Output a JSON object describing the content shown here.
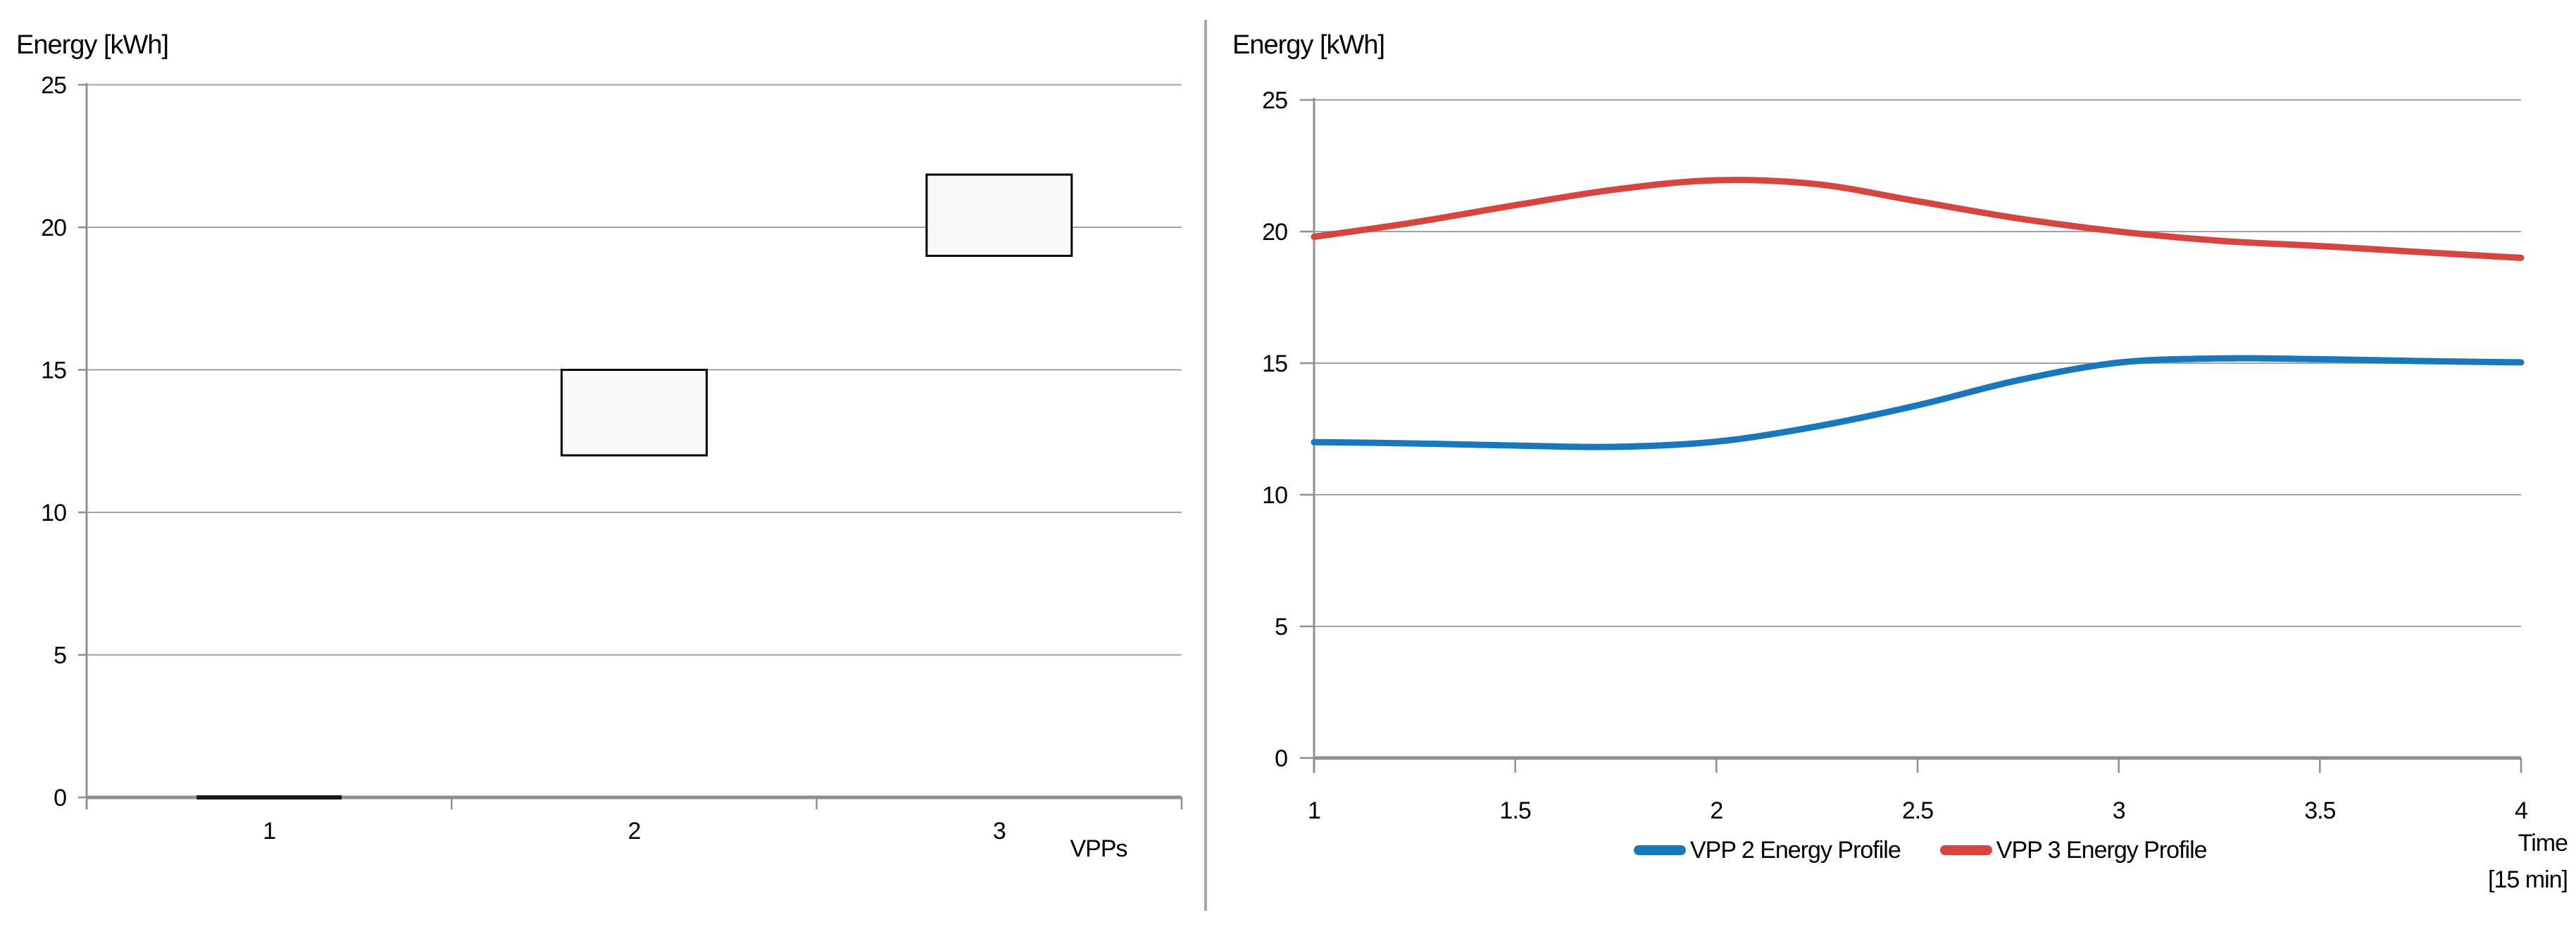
{
  "divider": {
    "color": "#a8a8a8"
  },
  "colors": {
    "gridline": "#a3a3a3",
    "axis": "#8f8f8f",
    "box_fill": "#f8f8f8",
    "box_border": "#000000",
    "collapsed_bar": "#1a1a1a",
    "text": "#000000"
  },
  "chart_data": [
    {
      "type": "bar",
      "subtype": "floating-range-box",
      "title": "Energy [kWh]",
      "xlabel": "VPPs",
      "ylabel": "Energy [kWh]",
      "categories": [
        "1",
        "2",
        "3"
      ],
      "ranges": [
        [
          0,
          0
        ],
        [
          12,
          15
        ],
        [
          19,
          21.85
        ]
      ],
      "ylim": [
        0,
        25
      ],
      "y_ticks": [
        0,
        5,
        10,
        15,
        20,
        25
      ],
      "grid": true,
      "legend_position": "none"
    },
    {
      "type": "line",
      "title": "Energy [kWh]",
      "xlabel_line1": "Time",
      "xlabel_line2": "[15 min]",
      "ylabel": "Energy [kWh]",
      "xlim": [
        1,
        4
      ],
      "ylim": [
        0,
        25
      ],
      "x_ticks": [
        1,
        1.5,
        2,
        2.5,
        3,
        3.5,
        4
      ],
      "y_ticks": [
        0,
        5,
        10,
        15,
        20,
        25
      ],
      "grid": true,
      "legend_position": "bottom",
      "line_style": "smooth",
      "series": [
        {
          "name": "VPP 2 Energy Profile",
          "color": "#1878be",
          "points": [
            [
              1,
              12.0
            ],
            [
              1.25,
              11.95
            ],
            [
              1.5,
              11.87
            ],
            [
              1.75,
              11.82
            ],
            [
              2,
              12.02
            ],
            [
              2.25,
              12.6
            ],
            [
              2.5,
              13.4
            ],
            [
              2.75,
              14.35
            ],
            [
              3,
              15.02
            ],
            [
              3.25,
              15.18
            ],
            [
              3.5,
              15.15
            ],
            [
              3.75,
              15.08
            ],
            [
              4,
              15.03
            ]
          ]
        },
        {
          "name": "VPP 3 Energy Profile",
          "color": "#d74541",
          "points": [
            [
              1,
              19.8
            ],
            [
              1.25,
              20.35
            ],
            [
              1.5,
              21.0
            ],
            [
              1.75,
              21.6
            ],
            [
              2,
              21.95
            ],
            [
              2.25,
              21.8
            ],
            [
              2.5,
              21.15
            ],
            [
              2.75,
              20.5
            ],
            [
              3,
              20.0
            ],
            [
              3.25,
              19.65
            ],
            [
              3.5,
              19.45
            ],
            [
              3.75,
              19.22
            ],
            [
              4,
              19.0
            ]
          ]
        }
      ]
    }
  ]
}
